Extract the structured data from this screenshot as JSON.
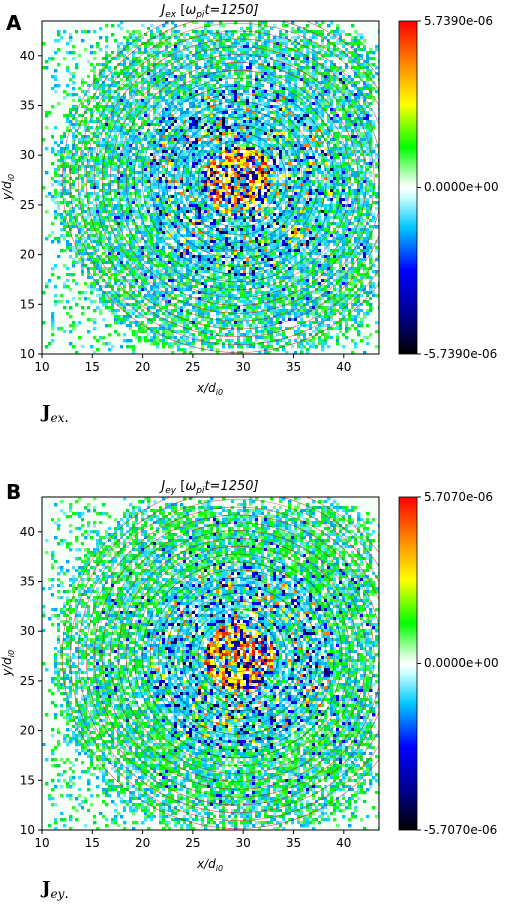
{
  "chart_data": [
    {
      "type": "heatmap",
      "panel_label": "A",
      "title": "J_ex [ω_pi t=1250]",
      "title_main": "J",
      "title_sub": "ex",
      "title_bracket_open": " [",
      "title_omega": "ω",
      "title_omega_sub": "pi",
      "title_time": "t=1250]",
      "xlabel_main": "x/d",
      "xlabel_sub": "i0",
      "ylabel_main": "y/d",
      "ylabel_sub": "i0",
      "xlim": [
        10,
        43.5
      ],
      "ylim": [
        10,
        43.5
      ],
      "xticks": [
        "10",
        "15",
        "20",
        "25",
        "30",
        "35",
        "40"
      ],
      "yticks": [
        "10",
        "15",
        "20",
        "25",
        "30",
        "35",
        "40"
      ],
      "colorbar": {
        "max": "5.7390e-06",
        "mid": "0.0000e+00",
        "min": "-5.7390e-06"
      },
      "caption_main": "J",
      "caption_sub": "ex",
      "caption_dot": ".",
      "contour_center": [
        29.5,
        27.5
      ]
    },
    {
      "type": "heatmap",
      "panel_label": "B",
      "title": "J_ey [ω_pi t=1250]",
      "title_main": "J",
      "title_sub": "ey",
      "title_bracket_open": " [",
      "title_omega": "ω",
      "title_omega_sub": "pi",
      "title_time": "t=1250]",
      "xlabel_main": "x/d",
      "xlabel_sub": "i0",
      "ylabel_main": "y/d",
      "ylabel_sub": "i0",
      "xlim": [
        10,
        43.5
      ],
      "ylim": [
        10,
        43.5
      ],
      "xticks": [
        "10",
        "15",
        "20",
        "25",
        "30",
        "35",
        "40"
      ],
      "yticks": [
        "10",
        "15",
        "20",
        "25",
        "30",
        "35",
        "40"
      ],
      "colorbar": {
        "max": "5.7070e-06",
        "mid": "0.0000e+00",
        "min": "-5.7070e-06"
      },
      "caption_main": "J",
      "caption_sub": "ey",
      "caption_dot": ".",
      "contour_center": [
        29.5,
        27.5
      ]
    }
  ]
}
